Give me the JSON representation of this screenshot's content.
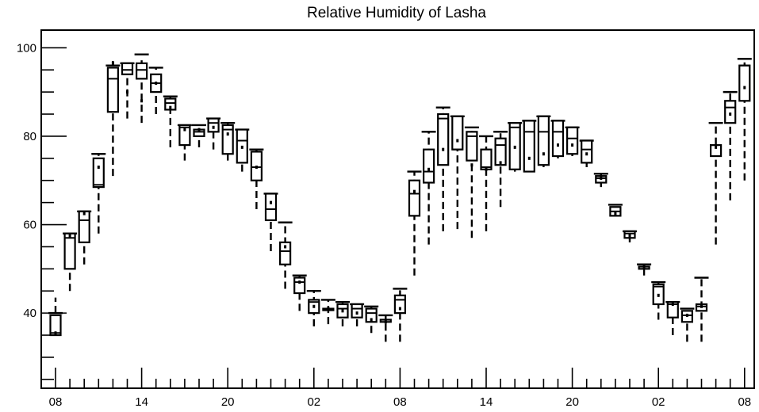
{
  "chart_data": {
    "type": "boxplot",
    "title": "Relative Humidity of Lasha",
    "xlabel": "",
    "ylabel": "",
    "ylim": [
      23,
      104
    ],
    "y_ticks": [
      40,
      60,
      80,
      100
    ],
    "x_tick_labels": [
      "08",
      "14",
      "20",
      "02",
      "08",
      "14",
      "20",
      "02",
      "08"
    ],
    "grid": false,
    "legend": "none",
    "boxes": [
      {
        "x": 0,
        "whisker_low": 35,
        "q1": 35,
        "median": 35.5,
        "mean": 35.5,
        "q3": 39.5,
        "whisker_high": 43.5,
        "max_line": 40
      },
      {
        "x": 1,
        "whisker_low": 45,
        "q1": 50,
        "median": 57,
        "mean": 57.5,
        "q3": 58,
        "whisker_high": 58,
        "max_line": 58
      },
      {
        "x": 2,
        "whisker_low": 51,
        "q1": 56,
        "median": 61,
        "mean": 62.5,
        "q3": 63,
        "whisker_high": 63,
        "max_line": 63
      },
      {
        "x": 3,
        "whisker_low": 58,
        "q1": 68.5,
        "median": 69,
        "mean": 73,
        "q3": 75,
        "whisker_high": 76,
        "max_line": 76
      },
      {
        "x": 4,
        "whisker_low": 71,
        "q1": 85.5,
        "median": 93,
        "mean": 96.5,
        "q3": 95.5,
        "whisker_high": 97,
        "max_line": 96
      },
      {
        "x": 5,
        "whisker_low": 84,
        "q1": 94,
        "median": 95,
        "mean": 90,
        "q3": 96.5,
        "whisker_high": 96.5,
        "max_line": 96.5
      },
      {
        "x": 6,
        "whisker_low": 83,
        "q1": 93,
        "median": 95,
        "mean": 88,
        "q3": 96.5,
        "whisker_high": 98,
        "max_line": 98.5
      },
      {
        "x": 7,
        "whisker_low": 85,
        "q1": 90,
        "median": 92,
        "mean": 92,
        "q3": 94,
        "whisker_high": 95.5,
        "max_line": 95.5
      },
      {
        "x": 8,
        "whisker_low": 77.5,
        "q1": 86,
        "median": 87.5,
        "mean": 86.5,
        "q3": 88.5,
        "whisker_high": 89.5,
        "max_line": 89
      },
      {
        "x": 9,
        "whisker_low": 74.5,
        "q1": 78,
        "median": 82,
        "mean": 81.5,
        "q3": 82.5,
        "whisker_high": 82.5,
        "max_line": 82.5
      },
      {
        "x": 10,
        "whisker_low": 77.5,
        "q1": 80,
        "median": 81,
        "mean": 81.5,
        "q3": 81.5,
        "whisker_high": 82.5,
        "max_line": 82.5
      },
      {
        "x": 11,
        "whisker_low": 77,
        "q1": 81,
        "median": 83,
        "mean": 82,
        "q3": 84,
        "whisker_high": 84,
        "max_line": 84
      },
      {
        "x": 12,
        "whisker_low": 74.5,
        "q1": 76,
        "median": 81.5,
        "mean": 80.5,
        "q3": 82.5,
        "whisker_high": 83,
        "max_line": 83
      },
      {
        "x": 13,
        "whisker_low": 72,
        "q1": 74,
        "median": 79,
        "mean": 77.5,
        "q3": 81.5,
        "whisker_high": 81.5,
        "max_line": 81.5
      },
      {
        "x": 14,
        "whisker_low": 63.5,
        "q1": 70,
        "median": 73,
        "mean": 73,
        "q3": 76.5,
        "whisker_high": 77,
        "max_line": 77
      },
      {
        "x": 15,
        "whisker_low": 54,
        "q1": 61,
        "median": 63.5,
        "mean": 65,
        "q3": 67,
        "whisker_high": 67,
        "max_line": 67
      },
      {
        "x": 16,
        "whisker_low": 45.5,
        "q1": 51,
        "median": 54,
        "mean": 55,
        "q3": 56,
        "whisker_high": 60.5,
        "max_line": 60.5
      },
      {
        "x": 17,
        "whisker_low": 40.5,
        "q1": 44.5,
        "median": 47,
        "mean": 47,
        "q3": 48,
        "whisker_high": 48.5,
        "max_line": 48.5
      },
      {
        "x": 18,
        "whisker_low": 37,
        "q1": 40,
        "median": 42.5,
        "mean": 41.5,
        "q3": 43,
        "whisker_high": 45,
        "max_line": 45
      },
      {
        "x": 19,
        "whisker_low": 37.5,
        "q1": 41,
        "median": 41,
        "mean": 41,
        "q3": 41,
        "whisker_high": 43,
        "max_line": 43
      },
      {
        "x": 20,
        "whisker_low": 37,
        "q1": 39,
        "median": 41,
        "mean": 40.5,
        "q3": 42,
        "whisker_high": 42.5,
        "max_line": 42.5
      },
      {
        "x": 21,
        "whisker_low": 37,
        "q1": 39,
        "median": 41,
        "mean": 40,
        "q3": 42,
        "whisker_high": 42,
        "max_line": 42
      },
      {
        "x": 22,
        "whisker_low": 35.5,
        "q1": 38,
        "median": 40,
        "mean": 38.5,
        "q3": 41,
        "whisker_high": 41.5,
        "max_line": 41.5
      },
      {
        "x": 23,
        "whisker_low": 33.5,
        "q1": 38,
        "median": 38.5,
        "mean": 38,
        "q3": 38.5,
        "whisker_high": 39.5,
        "max_line": 39.5
      },
      {
        "x": 24,
        "whisker_low": 33.5,
        "q1": 40,
        "median": 43,
        "mean": 41,
        "q3": 44,
        "whisker_high": 45.5,
        "max_line": 45.5
      },
      {
        "x": 25,
        "whisker_low": 48.5,
        "q1": 62,
        "median": 67,
        "mean": 67.5,
        "q3": 70,
        "whisker_high": 72,
        "max_line": 72
      },
      {
        "x": 26,
        "whisker_low": 55.5,
        "q1": 69.5,
        "median": 72,
        "mean": 72.5,
        "q3": 77,
        "whisker_high": 81,
        "max_line": 81
      },
      {
        "x": 27,
        "whisker_low": 58.5,
        "q1": 73.5,
        "median": 84,
        "mean": 77,
        "q3": 85,
        "whisker_high": 86.5,
        "max_line": 86.5
      },
      {
        "x": 28,
        "whisker_low": 59,
        "q1": 77,
        "median": 77,
        "mean": 79,
        "q3": 84.5,
        "whisker_high": 84.5,
        "max_line": 84.5
      },
      {
        "x": 29,
        "whisker_low": 57,
        "q1": 74.5,
        "median": 80,
        "mean": 73.5,
        "q3": 81,
        "whisker_high": 82,
        "max_line": 82
      },
      {
        "x": 30,
        "whisker_low": 58.5,
        "q1": 72.5,
        "median": 73,
        "mean": 72.5,
        "q3": 77,
        "whisker_high": 80,
        "max_line": 80
      },
      {
        "x": 31,
        "whisker_low": 64,
        "q1": 73.5,
        "median": 78,
        "mean": 74,
        "q3": 79.5,
        "whisker_high": 81,
        "max_line": 81
      },
      {
        "x": 32,
        "whisker_low": 72,
        "q1": 72.5,
        "median": 82,
        "mean": 77.5,
        "q3": 83,
        "whisker_high": 83,
        "max_line": 83
      },
      {
        "x": 33,
        "whisker_low": 72,
        "q1": 72,
        "median": 81,
        "mean": 75,
        "q3": 83.5,
        "whisker_high": 83.5,
        "max_line": 83.5
      },
      {
        "x": 34,
        "whisker_low": 73,
        "q1": 73.5,
        "median": 81,
        "mean": 76,
        "q3": 84.5,
        "whisker_high": 84.5,
        "max_line": 84.5
      },
      {
        "x": 35,
        "whisker_low": 75,
        "q1": 75.5,
        "median": 81,
        "mean": 78,
        "q3": 83.5,
        "whisker_high": 83.5,
        "max_line": 83.5
      },
      {
        "x": 36,
        "whisker_low": 75.5,
        "q1": 76,
        "median": 79.5,
        "mean": 78,
        "q3": 82,
        "whisker_high": 82,
        "max_line": 82
      },
      {
        "x": 37,
        "whisker_low": 73,
        "q1": 74,
        "median": 77,
        "mean": 76,
        "q3": 79,
        "whisker_high": 79,
        "max_line": 79
      },
      {
        "x": 38,
        "whisker_low": 68.5,
        "q1": 69.5,
        "median": 70.5,
        "mean": 70.5,
        "q3": 71,
        "whisker_high": 71.5,
        "max_line": 71.5
      },
      {
        "x": 39,
        "whisker_low": 62,
        "q1": 62,
        "median": 63,
        "mean": 62.5,
        "q3": 64,
        "whisker_high": 64.5,
        "max_line": 64.5
      },
      {
        "x": 40,
        "whisker_low": 56,
        "q1": 57,
        "median": 58,
        "mean": 57.5,
        "q3": 58.5,
        "whisker_high": 58.5,
        "max_line": 58.5
      },
      {
        "x": 41,
        "whisker_low": 48.5,
        "q1": 50,
        "median": 50.5,
        "mean": 50.5,
        "q3": 50.5,
        "whisker_high": 51,
        "max_line": 51
      },
      {
        "x": 42,
        "whisker_low": 38.5,
        "q1": 42,
        "median": 46,
        "mean": 44,
        "q3": 46.5,
        "whisker_high": 47,
        "max_line": 47
      },
      {
        "x": 43,
        "whisker_low": 35,
        "q1": 39,
        "median": 42,
        "mean": 42,
        "q3": 42.5,
        "whisker_high": 42.5,
        "max_line": 42.5
      },
      {
        "x": 44,
        "whisker_low": 33.5,
        "q1": 38,
        "median": 39.5,
        "mean": 39.5,
        "q3": 40.5,
        "whisker_high": 41,
        "max_line": 41
      },
      {
        "x": 45,
        "whisker_low": 33.5,
        "q1": 40.5,
        "median": 41.5,
        "mean": 41.5,
        "q3": 42,
        "whisker_high": 48,
        "max_line": 48
      },
      {
        "x": 46,
        "whisker_low": 55.5,
        "q1": 75.5,
        "median": 78,
        "mean": 77.5,
        "q3": 78,
        "whisker_high": 83,
        "max_line": 83
      },
      {
        "x": 47,
        "whisker_low": 65.5,
        "q1": 83,
        "median": 86.5,
        "mean": 85,
        "q3": 88,
        "whisker_high": 90,
        "max_line": 90
      },
      {
        "x": 48,
        "whisker_low": 70,
        "q1": 88,
        "median": 96,
        "mean": 91,
        "q3": 96,
        "whisker_high": 97.5,
        "max_line": 97.5
      }
    ]
  }
}
